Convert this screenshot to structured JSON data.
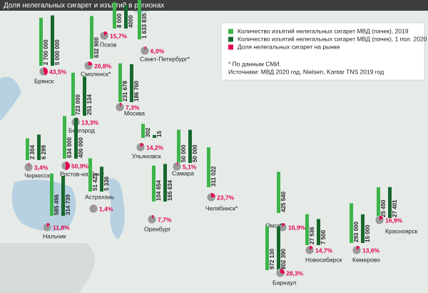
{
  "title": "Доля нелегальных сигарет и изъятий в регионах",
  "legend": [
    {
      "label": "Количество изъятий нелегальных сигарет МВД (пачек), 2019",
      "color": "#3cb54a"
    },
    {
      "label": "Количество изъятий нелегальных сигарет МВД (пачек), 1 пол. 2020",
      "color": "#17692f"
    },
    {
      "label": "Доля нелегальных сигарет на рынке",
      "color": "#e4004f"
    }
  ],
  "bar_scale": "log",
  "notes": [
    "* По данным СМИ.",
    "Источники: МВД 2020 год, Nielsen, Kantar TNS 2019 год"
  ],
  "cities": [
    {
      "name": "Брянск",
      "values": [
        2700000,
        5000000
      ],
      "value_labels": [
        "2 700 000",
        "5 000 000"
      ],
      "share": 43.5,
      "share_label": "43,5%"
    },
    {
      "name": "Смоленск*",
      "values": [
        632900,
        null
      ],
      "value_labels": [
        "632 900",
        null
      ],
      "share": 20.8,
      "share_label": "20,8%"
    },
    {
      "name": "Псков",
      "values": [
        8000,
        4000
      ],
      "value_labels": [
        "8 000",
        "4000"
      ],
      "share": 15.7,
      "share_label": "15,7%"
    },
    {
      "name": "Санкт-Петербург*",
      "values": [
        1633835,
        null
      ],
      "value_labels": [
        "1 633 835",
        null
      ],
      "share": 6.0,
      "share_label": "6,0%"
    },
    {
      "name": "Москва",
      "values": [
        231678,
        186760
      ],
      "value_labels": [
        "231 678",
        "186 760"
      ],
      "share": 7.3,
      "share_label": "7,3%"
    },
    {
      "name": "Белгород",
      "values": [
        723000,
        251134
      ],
      "value_labels": [
        "723 000",
        "251 134"
      ],
      "share": 13.3,
      "share_label": "13,3%"
    },
    {
      "name": "Ульяновск",
      "values": [
        302,
        15
      ],
      "value_labels": [
        "302",
        "15"
      ],
      "share": 14.2,
      "share_label": "14,2%"
    },
    {
      "name": "Самара",
      "values": [
        50000,
        50000
      ],
      "value_labels": [
        "50 000",
        "50 000"
      ],
      "share": 5.1,
      "share_label": "5,1%"
    },
    {
      "name": "Черкесск",
      "values": [
        2304,
        6299
      ],
      "value_labels": [
        "2 304",
        "6 299"
      ],
      "share": 3.4,
      "share_label": "3,4%"
    },
    {
      "name": "Ростов-на-Дону",
      "values": [
        634000,
        400000
      ],
      "value_labels": [
        "634 000",
        "400 000"
      ],
      "share": 50.9,
      "share_label": "50,9%"
    },
    {
      "name": "Астрахань",
      "values": [
        51423,
        5336
      ],
      "value_labels": [
        "51 423",
        "5 336"
      ],
      "share": 1.4,
      "share_label": "1,4%"
    },
    {
      "name": "Нальчик",
      "values": [
        585496,
        314739
      ],
      "value_labels": [
        "585 496",
        "314 739"
      ],
      "share": 11.8,
      "share_label": "11,8%"
    },
    {
      "name": "Оренбург",
      "values": [
        104654,
        165634
      ],
      "value_labels": [
        "104 654",
        "165 634"
      ],
      "share": 7.7,
      "share_label": "7,7%"
    },
    {
      "name": "Челябинск*",
      "values": [
        311022,
        null
      ],
      "value_labels": [
        "311 022",
        null
      ],
      "share": 23.7,
      "share_label": "23,7%"
    },
    {
      "name": "Омск*",
      "values": [
        425540,
        null
      ],
      "value_labels": [
        "425 540",
        null
      ],
      "share": 10.9,
      "share_label": "10,9%"
    },
    {
      "name": "Барнаул",
      "values": [
        972130,
        802390
      ],
      "value_labels": [
        "972 130",
        "802 390"
      ],
      "share": 28.3,
      "share_label": "28,3%"
    },
    {
      "name": "Новосибирск",
      "values": [
        27536,
        7500
      ],
      "value_labels": [
        "27 536",
        "7 500"
      ],
      "share": 14.7,
      "share_label": "14,7%"
    },
    {
      "name": "Кемерово",
      "values": [
        293000,
        15000
      ],
      "value_labels": [
        "293 000",
        "15 000"
      ],
      "share": 13.6,
      "share_label": "13,6%"
    },
    {
      "name": "Красноярск",
      "values": [
        25450,
        27401
      ],
      "value_labels": [
        "25 450",
        "27 401"
      ],
      "share": 16.9,
      "share_label": "16,9%"
    }
  ]
}
